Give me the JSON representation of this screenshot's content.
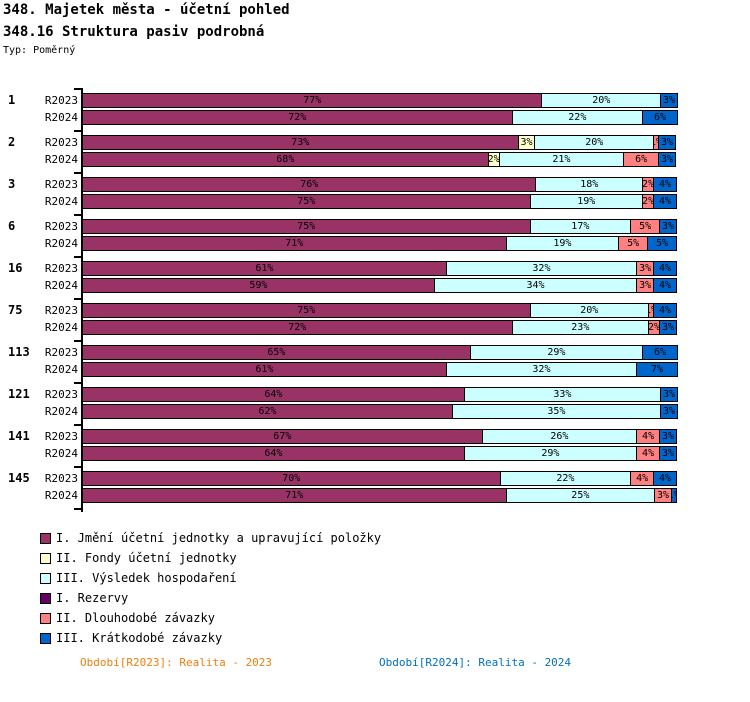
{
  "header": {
    "title_line1": "348. Majetek města - účetní pohled",
    "title_line2": "348.16 Struktura pasiv podrobná",
    "type_label": "Typ: Poměrný"
  },
  "legend": [
    {
      "label": "I. Jmění účetní jednotky a upravující položky",
      "color": "#993366"
    },
    {
      "label": "II. Fondy účetní jednotky",
      "color": "#FFFFCC"
    },
    {
      "label": "III. Výsledek hospodaření",
      "color": "#CCFFFF"
    },
    {
      "label": "I. Rezervy",
      "color": "#660066"
    },
    {
      "label": "II. Dlouhodobé závazky",
      "color": "#FF8080"
    },
    {
      "label": "III. Krátkodobé závazky",
      "color": "#0066CC"
    }
  ],
  "footer": {
    "left": {
      "text": "Období[R2023]: Realita - 2023",
      "color": "#EE7F0D"
    },
    "right": {
      "text": "Období[R2024]: Realita - 2024",
      "color": "#0070C0"
    }
  },
  "chart_data": {
    "type": "bar",
    "orientation": "horizontal-stacked",
    "unit": "%",
    "xlim": [
      0,
      100
    ],
    "grid": false,
    "legend_position": "bottom-left",
    "segment_keys": [
      "I. Jmění účetní jednotky a upravující položky",
      "II. Fondy účetní jednotky",
      "III. Výsledek hospodaření",
      "I. Rezervy",
      "II. Dlouhodobé závazky",
      "III. Krátkodobé závazky"
    ],
    "segment_colors": [
      "#993366",
      "#FFFFCC",
      "#CCFFFF",
      "#660066",
      "#FF8080",
      "#0066CC"
    ],
    "groups": [
      {
        "category": "1",
        "rows": [
          {
            "label": "R2023",
            "values": [
              77,
              0,
              20,
              0,
              0,
              3
            ]
          },
          {
            "label": "R2024",
            "values": [
              72,
              0,
              22,
              0,
              0,
              6
            ]
          }
        ]
      },
      {
        "category": "2",
        "rows": [
          {
            "label": "R2023",
            "values": [
              73,
              3,
              20,
              0,
              1,
              3
            ]
          },
          {
            "label": "R2024",
            "values": [
              68,
              2,
              21,
              0,
              6,
              3
            ]
          }
        ]
      },
      {
        "category": "3",
        "rows": [
          {
            "label": "R2023",
            "values": [
              76,
              0,
              18,
              0,
              2,
              4
            ]
          },
          {
            "label": "R2024",
            "values": [
              75,
              0,
              19,
              0,
              2,
              4
            ]
          }
        ]
      },
      {
        "category": "6",
        "rows": [
          {
            "label": "R2023",
            "values": [
              75,
              0,
              17,
              0,
              5,
              3
            ]
          },
          {
            "label": "R2024",
            "values": [
              71,
              0,
              19,
              0,
              5,
              5
            ]
          }
        ]
      },
      {
        "category": "16",
        "rows": [
          {
            "label": "R2023",
            "values": [
              61,
              0,
              32,
              0,
              3,
              4
            ]
          },
          {
            "label": "R2024",
            "values": [
              59,
              0,
              34,
              0,
              3,
              4
            ]
          }
        ]
      },
      {
        "category": "75",
        "rows": [
          {
            "label": "R2023",
            "values": [
              75,
              0,
              20,
              0,
              1,
              4
            ]
          },
          {
            "label": "R2024",
            "values": [
              72,
              0,
              23,
              0,
              2,
              3
            ]
          }
        ]
      },
      {
        "category": "113",
        "rows": [
          {
            "label": "R2023",
            "values": [
              65,
              0,
              29,
              0,
              0,
              6
            ]
          },
          {
            "label": "R2024",
            "values": [
              61,
              0,
              32,
              0,
              0,
              7
            ]
          }
        ]
      },
      {
        "category": "121",
        "rows": [
          {
            "label": "R2023",
            "values": [
              64,
              0,
              33,
              0,
              0,
              3
            ]
          },
          {
            "label": "R2024",
            "values": [
              62,
              0,
              35,
              0,
              0,
              3
            ]
          }
        ]
      },
      {
        "category": "141",
        "rows": [
          {
            "label": "R2023",
            "values": [
              67,
              0,
              26,
              0,
              4,
              3
            ]
          },
          {
            "label": "R2024",
            "values": [
              64,
              0,
              29,
              0,
              4,
              3
            ]
          }
        ]
      },
      {
        "category": "145",
        "rows": [
          {
            "label": "R2023",
            "values": [
              70,
              0,
              22,
              0,
              4,
              4
            ]
          },
          {
            "label": "R2024",
            "values": [
              71,
              0,
              25,
              0,
              3,
              1
            ]
          }
        ]
      }
    ]
  }
}
